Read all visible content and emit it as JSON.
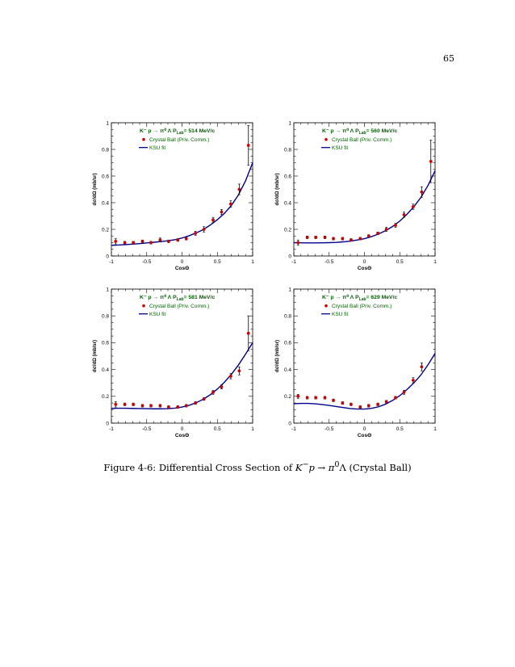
{
  "page": {
    "number": "65"
  },
  "caption": {
    "prefix": "Figure 4-6: Differential Cross Section of",
    "reaction_lhs": "K",
    "reaction_sup": "−",
    "reaction_p": "p",
    "arrow": "→",
    "pi": "π",
    "pi_sup": "0",
    "lambda": "Λ",
    "suffix": "(Crystal Ball)"
  },
  "colors": {
    "data": "#cc0000",
    "fit": "#00008b",
    "title": "#006400",
    "axis": "#000000"
  },
  "chart_data": [
    {
      "type": "scatter",
      "reaction": "K⁻ p → π⁰ Λ",
      "p_lab_label": "P",
      "p_lab_sub": "Lab",
      "p_lab_value": "= 514 MeV/c",
      "legend": [
        "Crystal Ball (Priv. Comm.)",
        "KSU fit"
      ],
      "ylabel": "dσ/dΩ (mb/sr)",
      "xlabel": "CosΘ",
      "xlim": [
        -1,
        1
      ],
      "ylim": [
        0,
        1
      ],
      "xticks": [
        "-1",
        "-0.5",
        "0",
        "0.5",
        "1"
      ],
      "yticks": [
        "0",
        "0.2",
        "0.4",
        "0.6",
        "0.8",
        "1"
      ],
      "series": [
        {
          "name": "Crystal Ball (Priv. Comm.)",
          "x": [
            -0.94,
            -0.81,
            -0.69,
            -0.56,
            -0.44,
            -0.31,
            -0.19,
            -0.06,
            0.06,
            0.19,
            0.31,
            0.44,
            0.56,
            0.69,
            0.81,
            0.94
          ],
          "y": [
            0.11,
            0.1,
            0.1,
            0.11,
            0.1,
            0.12,
            0.11,
            0.12,
            0.13,
            0.17,
            0.2,
            0.27,
            0.33,
            0.39,
            0.5,
            0.83
          ],
          "err": [
            0.02,
            0.01,
            0.01,
            0.01,
            0.01,
            0.015,
            0.01,
            0.01,
            0.01,
            0.015,
            0.02,
            0.02,
            0.02,
            0.025,
            0.04,
            0.15
          ]
        },
        {
          "name": "KSU fit",
          "x": [
            -1,
            -0.9,
            -0.8,
            -0.7,
            -0.6,
            -0.5,
            -0.4,
            -0.3,
            -0.2,
            -0.1,
            0,
            0.1,
            0.2,
            0.3,
            0.4,
            0.5,
            0.6,
            0.7,
            0.8,
            0.9,
            1
          ],
          "y": [
            0.08,
            0.082,
            0.085,
            0.089,
            0.093,
            0.098,
            0.103,
            0.108,
            0.114,
            0.122,
            0.135,
            0.152,
            0.173,
            0.198,
            0.232,
            0.272,
            0.32,
            0.38,
            0.46,
            0.565,
            0.7
          ]
        }
      ]
    },
    {
      "type": "scatter",
      "reaction": "K⁻ p → π⁰ Λ",
      "p_lab_label": "P",
      "p_lab_sub": "Lab",
      "p_lab_value": "= 560 MeV/c",
      "legend": [
        "Crystal Ball (Priv. Comm.)",
        "KSU fit"
      ],
      "ylabel": "dσ/dΩ (mb/sr)",
      "xlabel": "CosΘ",
      "xlim": [
        -1,
        1
      ],
      "ylim": [
        0,
        1
      ],
      "xticks": [
        "-1",
        "-0.5",
        "0",
        "0.5",
        "1"
      ],
      "yticks": [
        "0",
        "0.2",
        "0.4",
        "0.6",
        "0.8",
        "1"
      ],
      "series": [
        {
          "name": "Crystal Ball (Priv. Comm.)",
          "x": [
            -0.94,
            -0.81,
            -0.69,
            -0.56,
            -0.44,
            -0.31,
            -0.19,
            -0.06,
            0.06,
            0.19,
            0.31,
            0.44,
            0.56,
            0.69,
            0.81,
            0.94
          ],
          "y": [
            0.1,
            0.14,
            0.14,
            0.14,
            0.13,
            0.13,
            0.12,
            0.13,
            0.15,
            0.17,
            0.2,
            0.23,
            0.31,
            0.37,
            0.48,
            0.71
          ],
          "err": [
            0.02,
            0.01,
            0.01,
            0.01,
            0.01,
            0.01,
            0.01,
            0.01,
            0.01,
            0.01,
            0.015,
            0.015,
            0.02,
            0.02,
            0.04,
            0.16
          ]
        },
        {
          "name": "KSU fit",
          "x": [
            -1,
            -0.9,
            -0.8,
            -0.7,
            -0.6,
            -0.5,
            -0.4,
            -0.3,
            -0.2,
            -0.1,
            0,
            0.1,
            0.2,
            0.3,
            0.4,
            0.5,
            0.6,
            0.7,
            0.8,
            0.9,
            1
          ],
          "y": [
            0.1,
            0.099,
            0.098,
            0.098,
            0.099,
            0.1,
            0.102,
            0.106,
            0.112,
            0.12,
            0.13,
            0.145,
            0.165,
            0.19,
            0.222,
            0.262,
            0.312,
            0.37,
            0.44,
            0.53,
            0.64
          ]
        }
      ]
    },
    {
      "type": "scatter",
      "reaction": "K⁻ p → π⁰ Λ",
      "p_lab_label": "P",
      "p_lab_sub": "Lab",
      "p_lab_value": "= 581 MeV/c",
      "legend": [
        "Crystal Ball (Priv. Comm.)",
        "KSU fit"
      ],
      "ylabel": "dσ/dΩ (mb/sr)",
      "xlabel": "CosΘ",
      "xlim": [
        -1,
        1
      ],
      "ylim": [
        0,
        1
      ],
      "xticks": [
        "-1",
        "-0.5",
        "0",
        "0.5",
        "1"
      ],
      "yticks": [
        "0",
        "0.2",
        "0.4",
        "0.6",
        "0.8",
        "1"
      ],
      "series": [
        {
          "name": "Crystal Ball (Priv. Comm.)",
          "x": [
            -0.94,
            -0.81,
            -0.69,
            -0.56,
            -0.44,
            -0.31,
            -0.19,
            -0.06,
            0.06,
            0.19,
            0.31,
            0.44,
            0.56,
            0.69,
            0.81,
            0.94
          ],
          "y": [
            0.14,
            0.14,
            0.14,
            0.13,
            0.13,
            0.13,
            0.12,
            0.12,
            0.13,
            0.15,
            0.18,
            0.23,
            0.27,
            0.35,
            0.39,
            0.67
          ],
          "err": [
            0.02,
            0.01,
            0.01,
            0.01,
            0.01,
            0.01,
            0.01,
            0.01,
            0.01,
            0.01,
            0.01,
            0.015,
            0.015,
            0.02,
            0.03,
            0.13
          ]
        },
        {
          "name": "KSU fit",
          "x": [
            -1,
            -0.9,
            -0.8,
            -0.7,
            -0.6,
            -0.5,
            -0.4,
            -0.3,
            -0.2,
            -0.1,
            0,
            0.1,
            0.2,
            0.3,
            0.4,
            0.5,
            0.6,
            0.7,
            0.8,
            0.9,
            1
          ],
          "y": [
            0.11,
            0.111,
            0.111,
            0.11,
            0.109,
            0.108,
            0.107,
            0.107,
            0.108,
            0.112,
            0.12,
            0.133,
            0.152,
            0.178,
            0.212,
            0.254,
            0.305,
            0.365,
            0.435,
            0.515,
            0.6
          ]
        }
      ]
    },
    {
      "type": "scatter",
      "reaction": "K⁻ p → π⁰ Λ",
      "p_lab_label": "P",
      "p_lab_sub": "Lab",
      "p_lab_value": "= 629 MeV/c",
      "legend": [
        "Crystal Ball (Priv. Comm.)",
        "KSU fit"
      ],
      "ylabel": "dσ/dΩ (mb/sr)",
      "xlabel": "CosΘ",
      "xlim": [
        -1,
        1
      ],
      "ylim": [
        0,
        1
      ],
      "xticks": [
        "-1",
        "-0.5",
        "0",
        "0.5",
        "1"
      ],
      "yticks": [
        "0",
        "0.2",
        "0.4",
        "0.6",
        "0.8",
        "1"
      ],
      "series": [
        {
          "name": "Crystal Ball (Priv. Comm.)",
          "x": [
            -0.94,
            -0.81,
            -0.69,
            -0.56,
            -0.44,
            -0.31,
            -0.19,
            -0.06,
            0.06,
            0.19,
            0.31,
            0.44,
            0.56,
            0.69,
            0.81
          ],
          "y": [
            0.2,
            0.19,
            0.19,
            0.19,
            0.17,
            0.15,
            0.14,
            0.12,
            0.13,
            0.14,
            0.16,
            0.19,
            0.23,
            0.32,
            0.42
          ],
          "err": [
            0.015,
            0.01,
            0.01,
            0.01,
            0.01,
            0.01,
            0.01,
            0.01,
            0.01,
            0.01,
            0.01,
            0.01,
            0.015,
            0.02,
            0.03
          ]
        },
        {
          "name": "KSU fit",
          "x": [
            -1,
            -0.9,
            -0.8,
            -0.7,
            -0.6,
            -0.5,
            -0.4,
            -0.3,
            -0.2,
            -0.1,
            0,
            0.1,
            0.2,
            0.3,
            0.4,
            0.5,
            0.6,
            0.7,
            0.8,
            0.9,
            1
          ],
          "y": [
            0.145,
            0.147,
            0.147,
            0.144,
            0.139,
            0.132,
            0.124,
            0.116,
            0.109,
            0.105,
            0.105,
            0.11,
            0.122,
            0.142,
            0.17,
            0.205,
            0.25,
            0.3,
            0.36,
            0.435,
            0.52
          ]
        }
      ]
    }
  ]
}
